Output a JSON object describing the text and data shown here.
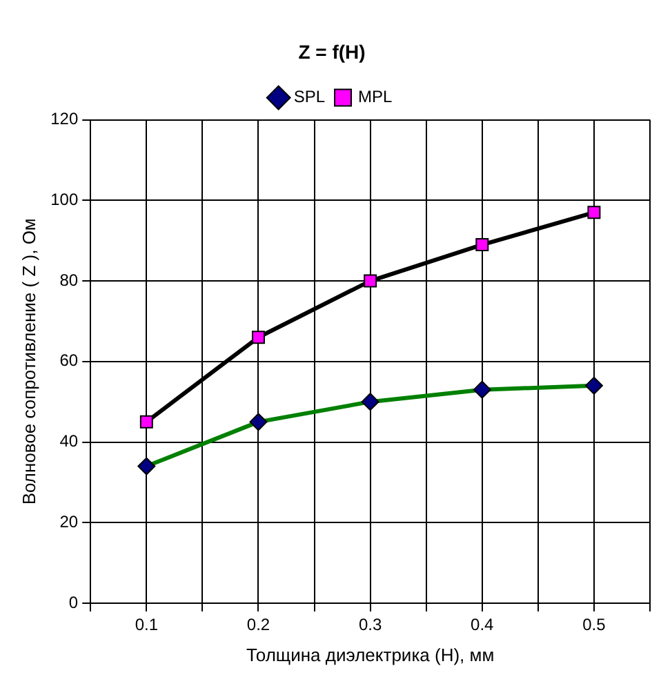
{
  "chart_data": {
    "type": "line",
    "title": "Z = f(H)",
    "xlabel": "Толщина диэлектрика (H), мм",
    "ylabel": "Волновое сопротивление ( Z ), Ом",
    "x": [
      0.1,
      0.2,
      0.3,
      0.4,
      0.5
    ],
    "series": [
      {
        "name": "SPL",
        "color": "#008000",
        "colors": [
          "#000080",
          "#000080",
          "#000080",
          "#000080",
          "#000080"
        ],
        "marker": "diamond",
        "values": [
          34,
          45,
          50,
          53,
          54
        ]
      },
      {
        "name": "MPL",
        "color": "#000000",
        "colors": [
          "#ff00ff",
          "#ff00ff",
          "#ff00ff",
          "#ff00ff",
          "#ff00ff"
        ],
        "marker": "square",
        "values": [
          45,
          66,
          80,
          89,
          97
        ]
      }
    ],
    "xlim": [
      0.05,
      0.55
    ],
    "xticks": [
      {
        "value": 0.05,
        "label": null
      },
      0.1,
      {
        "value": 0.15,
        "label": null
      },
      0.2,
      {
        "value": 0.25,
        "label": null
      },
      0.3,
      {
        "value": 0.35,
        "label": null
      },
      0.4,
      {
        "value": 0.45,
        "label": null
      },
      0.5,
      {
        "value": 0.55,
        "label": null
      }
    ],
    "ylim": [
      0,
      120
    ],
    "yticks": [
      0,
      20,
      40,
      60,
      80,
      100,
      120
    ],
    "grid": true,
    "legend": "top",
    "line_style": "solid"
  }
}
